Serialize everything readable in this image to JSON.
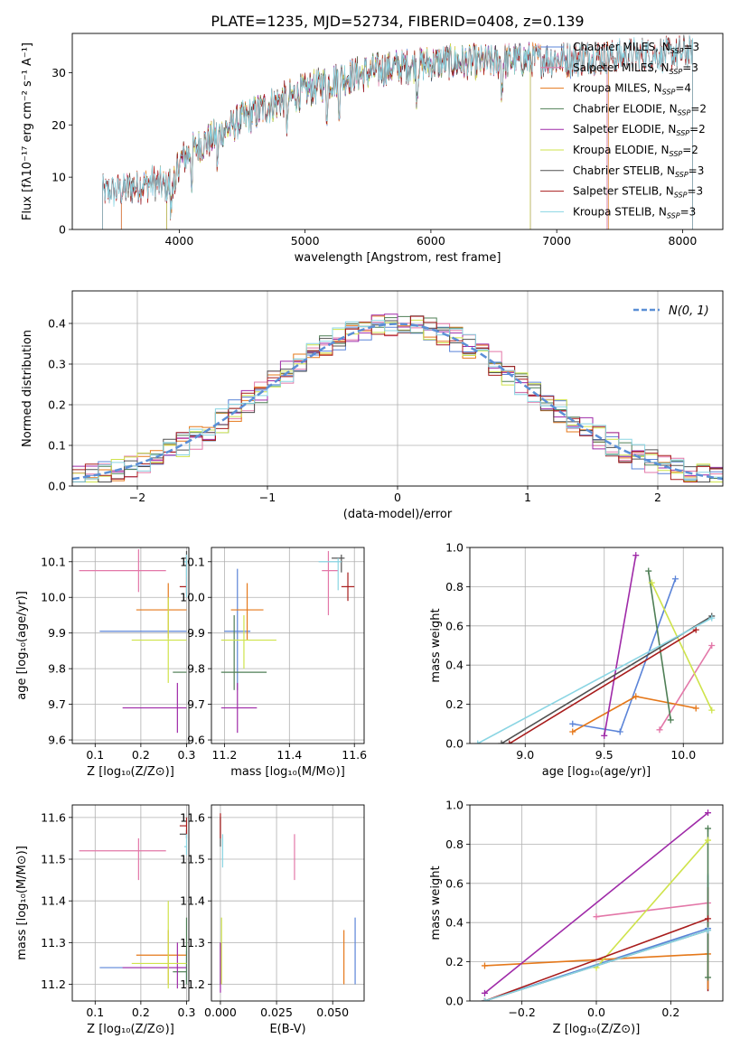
{
  "figure": {
    "title": "PLATE=1235, MJD=52734, FIBERID=0408, z=0.139"
  },
  "colors": {
    "chabrier_miles": "#5b84d8",
    "salpeter_miles": "#e377a8",
    "kroupa_miles": "#e5781a",
    "chabrier_elodie": "#4f7f56",
    "salpeter_elodie": "#9f2aa8",
    "kroupa_elodie": "#cfe34b",
    "chabrier_stelib": "#505050",
    "salpeter_stelib": "#a81c1c",
    "kroupa_stelib": "#8ad5e3",
    "gaussian": "#5b8fd6",
    "grid": "#b0b0b0"
  },
  "chart_data": [
    {
      "id": "spectrum",
      "type": "line",
      "title": "PLATE=1235, MJD=52734, FIBERID=0408, z=0.139",
      "xlabel": "wavelength [Angstrom, rest frame]",
      "ylabel": "Flux [fλ10⁻¹⁷ erg cm⁻² s⁻¹ A⁻¹]",
      "xlim": [
        3150,
        8320
      ],
      "ylim": [
        0,
        37.5
      ],
      "xticks": [
        4000,
        5000,
        6000,
        7000,
        8000
      ],
      "yticks": [
        0,
        10,
        20,
        30
      ],
      "grid": false,
      "legend_position": "top-right",
      "continuum_nodes": {
        "x": [
          3390,
          3500,
          3600,
          3700,
          3800,
          3900,
          3950,
          4000,
          4100,
          4200,
          4300,
          4400,
          4500,
          4700,
          4900,
          5100,
          5300,
          5500,
          5700,
          5900,
          6100,
          6300,
          6500,
          6700,
          6900,
          7100,
          7300,
          7500,
          7700,
          7900,
          8050
        ],
        "y": [
          7,
          7.5,
          8,
          8.5,
          9,
          8,
          9.5,
          13,
          15,
          16.5,
          18,
          19.5,
          21,
          23.5,
          25.5,
          27.5,
          29,
          30,
          31,
          31.5,
          32,
          32,
          32,
          32.5,
          32.5,
          32.5,
          33,
          33,
          33.5,
          33.5,
          34
        ]
      },
      "series": [
        {
          "name": "Chabrier MILES, Nₛₛₚ=3",
          "label": "Chabrier MILES, N",
          "ssp": "=3",
          "color_key": "chabrier_miles",
          "xrange": [
            3540,
            7400
          ]
        },
        {
          "name": "Salpeter MILES, Nₛₛₚ=3",
          "label": "Salpeter MILES, N",
          "ssp": "=3",
          "color_key": "salpeter_miles",
          "xrange": [
            3540,
            7400
          ]
        },
        {
          "name": "Kroupa MILES, Nₛₛₚ=4",
          "label": "Kroupa MILES, N",
          "ssp": "=4",
          "color_key": "kroupa_miles",
          "xrange": [
            3540,
            7410
          ]
        },
        {
          "name": "Chabrier ELODIE, Nₛₛₚ=2",
          "label": "Chabrier ELODIE, N",
          "ssp": "=2",
          "color_key": "chabrier_elodie",
          "xrange": [
            3900,
            6790
          ]
        },
        {
          "name": "Salpeter ELODIE, Nₛₛₚ=2",
          "label": "Salpeter ELODIE, N",
          "ssp": "=2",
          "color_key": "salpeter_elodie",
          "xrange": [
            3900,
            6790
          ]
        },
        {
          "name": "Kroupa ELODIE, Nₛₛₚ=2",
          "label": "Kroupa ELODIE, N",
          "ssp": "=2",
          "color_key": "kroupa_elodie",
          "xrange": [
            3900,
            6790
          ]
        },
        {
          "name": "Chabrier STELIB, Nₛₛₚ=3",
          "label": "Chabrier STELIB, N",
          "ssp": "=3",
          "color_key": "chabrier_stelib",
          "xrange": [
            3390,
            8080
          ]
        },
        {
          "name": "Salpeter STELIB, Nₛₛₚ=3",
          "label": "Salpeter STELIB, N",
          "ssp": "=3",
          "color_key": "salpeter_stelib",
          "xrange": [
            3390,
            8080
          ]
        },
        {
          "name": "Kroupa STELIB, Nₛₛₚ=3",
          "label": "Kroupa STELIB, N",
          "ssp": "=3",
          "color_key": "kroupa_stelib",
          "xrange": [
            3390,
            8080
          ]
        }
      ]
    },
    {
      "id": "residuals",
      "type": "line",
      "xlabel": "(data-model)/error",
      "ylabel": "Normed distribution",
      "xlim": [
        -2.5,
        2.5
      ],
      "ylim": [
        0,
        0.48
      ],
      "xticks": [
        -2,
        -1,
        0,
        1,
        2
      ],
      "xtick_labels": [
        "−2",
        "−1",
        "0",
        "1",
        "2"
      ],
      "yticks": [
        0.0,
        0.1,
        0.2,
        0.3,
        0.4
      ],
      "ytick_labels": [
        "0.0",
        "0.1",
        "0.2",
        "0.3",
        "0.4"
      ],
      "grid": true,
      "legend_position": "top-right",
      "legend": "N(0, 1)",
      "bin_width": 0.1,
      "series": "step histograms of the 9 models",
      "gaussian": {
        "mean": 0,
        "sigma": 1
      }
    },
    {
      "id": "age_vs_Z",
      "type": "scatter",
      "xlabel": "Z [log₁₀(Z/Z⊙)]",
      "ylabel": "age  [log₁₀(age/yr)]",
      "xlim": [
        0.05,
        0.305
      ],
      "ylim": [
        9.59,
        10.14
      ],
      "xticks": [
        0.1,
        0.2,
        0.3
      ],
      "yticks": [
        9.6,
        9.7,
        9.8,
        9.9,
        10.0,
        10.1
      ],
      "ytick_labels": [
        "9.6",
        "9.7",
        "9.8",
        "9.9",
        "10.0",
        "10.1"
      ],
      "grid": true,
      "points": [
        {
          "model": "chabrier_miles",
          "x": 0.3,
          "y": 9.905,
          "xlo": 0.11,
          "xhi": 0.3,
          "ylo": 9.905,
          "yhi": 9.905
        },
        {
          "model": "salpeter_miles",
          "x": 0.195,
          "y": 10.075,
          "xlo": 0.065,
          "xhi": 0.255,
          "ylo": 10.015,
          "yhi": 10.135
        },
        {
          "model": "kroupa_miles",
          "x": 0.26,
          "y": 9.965,
          "xlo": 0.19,
          "xhi": 0.3,
          "ylo": 9.885,
          "yhi": 10.04
        },
        {
          "model": "chabrier_elodie",
          "x": 0.3,
          "y": 9.79,
          "xlo": 0.27,
          "xhi": 0.3,
          "ylo": 9.79,
          "yhi": 9.79
        },
        {
          "model": "salpeter_elodie",
          "x": 0.28,
          "y": 9.69,
          "xlo": 0.16,
          "xhi": 0.3,
          "ylo": 9.62,
          "yhi": 9.76
        },
        {
          "model": "kroupa_elodie",
          "x": 0.26,
          "y": 9.88,
          "xlo": 0.18,
          "xhi": 0.3,
          "ylo": 9.76,
          "yhi": 10.0
        },
        {
          "model": "chabrier_stelib",
          "x": 0.3,
          "y": 10.11,
          "xlo": 0.29,
          "xhi": 0.3,
          "ylo": 10.06,
          "yhi": 10.13
        },
        {
          "model": "salpeter_stelib",
          "x": 0.3,
          "y": 10.03,
          "xlo": 0.285,
          "xhi": 0.3,
          "ylo": 10.01,
          "yhi": 10.06
        },
        {
          "model": "kroupa_stelib",
          "x": 0.3,
          "y": 10.1,
          "xlo": 0.295,
          "xhi": 0.3,
          "ylo": 10.0,
          "yhi": 10.12
        }
      ]
    },
    {
      "id": "age_vs_mass",
      "type": "scatter",
      "xlabel": "mass [log₁₀(M/M⊙)]",
      "ylabel": "",
      "xlim": [
        11.16,
        11.63
      ],
      "ylim": [
        9.59,
        10.14
      ],
      "xticks": [
        11.2,
        11.4,
        11.6
      ],
      "yticks": [
        9.6,
        9.7,
        9.8,
        9.9,
        10.0,
        10.1
      ],
      "ytick_labels": [
        "9.6",
        "9.7",
        "9.8",
        "9.9",
        "10.0",
        "10.1"
      ],
      "grid": true,
      "points": [
        {
          "model": "chabrier_miles",
          "x": 11.24,
          "y": 9.905,
          "xlo": 11.2,
          "xhi": 11.28,
          "ylo": 9.74,
          "yhi": 10.08
        },
        {
          "model": "salpeter_miles",
          "x": 11.52,
          "y": 10.075,
          "xlo": 11.5,
          "xhi": 11.55,
          "ylo": 9.95,
          "yhi": 10.13
        },
        {
          "model": "kroupa_miles",
          "x": 11.27,
          "y": 9.965,
          "xlo": 11.22,
          "xhi": 11.32,
          "ylo": 9.88,
          "yhi": 10.04
        },
        {
          "model": "chabrier_elodie",
          "x": 11.23,
          "y": 9.79,
          "xlo": 11.19,
          "xhi": 11.33,
          "ylo": 9.74,
          "yhi": 9.95
        },
        {
          "model": "salpeter_elodie",
          "x": 11.24,
          "y": 9.69,
          "xlo": 11.19,
          "xhi": 11.3,
          "ylo": 9.62,
          "yhi": 9.76
        },
        {
          "model": "kroupa_elodie",
          "x": 11.26,
          "y": 9.88,
          "xlo": 11.19,
          "xhi": 11.36,
          "ylo": 9.8,
          "yhi": 9.95
        },
        {
          "model": "chabrier_stelib",
          "x": 11.56,
          "y": 10.11,
          "xlo": 11.53,
          "xhi": 11.57,
          "ylo": 10.07,
          "yhi": 10.12
        },
        {
          "model": "salpeter_stelib",
          "x": 11.58,
          "y": 10.03,
          "xlo": 11.56,
          "xhi": 11.6,
          "ylo": 9.99,
          "yhi": 10.07
        },
        {
          "model": "kroupa_stelib",
          "x": 11.55,
          "y": 10.1,
          "xlo": 11.49,
          "xhi": 11.56,
          "ylo": 10.02,
          "yhi": 10.11
        }
      ]
    },
    {
      "id": "massweight_vs_age",
      "type": "line",
      "xlabel": "age  [log₁₀(age/yr)]",
      "ylabel": "mass weight",
      "xlim": [
        8.65,
        10.25
      ],
      "ylim": [
        0,
        1.0
      ],
      "xticks": [
        9.0,
        9.5,
        10.0
      ],
      "xtick_labels": [
        "9.0",
        "9.5",
        "10.0"
      ],
      "yticks": [
        0.0,
        0.2,
        0.4,
        0.6,
        0.8,
        1.0
      ],
      "ytick_labels": [
        "0.0",
        "0.2",
        "0.4",
        "0.6",
        "0.8",
        "1.0"
      ],
      "grid": true,
      "series": [
        {
          "model": "chabrier_miles",
          "x": [
            9.3,
            9.6,
            9.95
          ],
          "y": [
            0.1,
            0.06,
            0.84
          ]
        },
        {
          "model": "salpeter_miles",
          "x": [
            9.85,
            10.18
          ],
          "y": [
            0.07,
            0.5
          ]
        },
        {
          "model": "kroupa_miles",
          "x": [
            9.3,
            9.7,
            10.08
          ],
          "y": [
            0.06,
            0.24,
            0.18
          ]
        },
        {
          "model": "chabrier_elodie",
          "x": [
            9.78,
            9.92
          ],
          "y": [
            0.88,
            0.12
          ]
        },
        {
          "model": "salpeter_elodie",
          "x": [
            9.5,
            9.7
          ],
          "y": [
            0.04,
            0.96
          ]
        },
        {
          "model": "kroupa_elodie",
          "x": [
            9.8,
            10.18
          ],
          "y": [
            0.82,
            0.17
          ]
        },
        {
          "model": "chabrier_stelib",
          "x": [
            8.85,
            10.18
          ],
          "y": [
            0.0,
            0.65
          ]
        },
        {
          "model": "salpeter_stelib",
          "x": [
            8.9,
            10.08
          ],
          "y": [
            0.0,
            0.58
          ]
        },
        {
          "model": "kroupa_stelib",
          "x": [
            8.7,
            10.18
          ],
          "y": [
            0.0,
            0.64
          ]
        }
      ]
    },
    {
      "id": "mass_vs_Z",
      "type": "scatter",
      "xlabel": "Z [log₁₀(Z/Z⊙)]",
      "ylabel": "mass [log₁₀(M/M⊙)]",
      "xlim": [
        0.05,
        0.305
      ],
      "ylim": [
        11.16,
        11.63
      ],
      "xticks": [
        0.1,
        0.2,
        0.3
      ],
      "yticks": [
        11.2,
        11.3,
        11.4,
        11.5,
        11.6
      ],
      "ytick_labels": [
        "11.2",
        "11.3",
        "11.4",
        "11.5",
        "11.6"
      ],
      "grid": true,
      "points": [
        {
          "model": "chabrier_miles",
          "x": 0.3,
          "y": 11.24,
          "xlo": 0.11,
          "xhi": 0.3,
          "ylo": 11.2,
          "yhi": 11.28
        },
        {
          "model": "salpeter_miles",
          "x": 0.195,
          "y": 11.52,
          "xlo": 0.065,
          "xhi": 0.255,
          "ylo": 11.45,
          "yhi": 11.55
        },
        {
          "model": "kroupa_miles",
          "x": 0.26,
          "y": 11.27,
          "xlo": 0.19,
          "xhi": 0.3,
          "ylo": 11.2,
          "yhi": 11.33
        },
        {
          "model": "chabrier_elodie",
          "x": 0.3,
          "y": 11.23,
          "xlo": 0.27,
          "xhi": 0.3,
          "ylo": 11.2,
          "yhi": 11.36
        },
        {
          "model": "salpeter_elodie",
          "x": 0.28,
          "y": 11.24,
          "xlo": 0.16,
          "xhi": 0.3,
          "ylo": 11.19,
          "yhi": 11.3
        },
        {
          "model": "kroupa_elodie",
          "x": 0.26,
          "y": 11.25,
          "xlo": 0.18,
          "xhi": 0.3,
          "ylo": 11.19,
          "yhi": 11.4
        },
        {
          "model": "chabrier_stelib",
          "x": 0.3,
          "y": 11.56,
          "xlo": 0.285,
          "xhi": 0.3,
          "ylo": 11.55,
          "yhi": 11.57
        },
        {
          "model": "salpeter_stelib",
          "x": 0.3,
          "y": 11.58,
          "xlo": 0.285,
          "xhi": 0.3,
          "ylo": 11.56,
          "yhi": 11.6
        },
        {
          "model": "kroupa_stelib",
          "x": 0.3,
          "y": 11.53,
          "xlo": 0.295,
          "xhi": 0.3,
          "ylo": 11.51,
          "yhi": 11.56
        }
      ]
    },
    {
      "id": "mass_vs_ebv",
      "type": "scatter",
      "xlabel": "E(B-V)",
      "ylabel": "",
      "xlim": [
        -0.004,
        0.064
      ],
      "ylim": [
        11.16,
        11.63
      ],
      "xticks": [
        0.0,
        0.025,
        0.05
      ],
      "xtick_labels": [
        "0.000",
        "0.025",
        "0.050"
      ],
      "yticks": [
        11.2,
        11.3,
        11.4,
        11.5,
        11.6
      ],
      "ytick_labels": [
        "11.2",
        "11.3",
        "11.4",
        "11.5",
        "11.6"
      ],
      "grid": true,
      "points": [
        {
          "model": "chabrier_miles",
          "x": 0.06,
          "y": 11.24,
          "xlo": 0.06,
          "xhi": 0.06,
          "ylo": 11.2,
          "yhi": 11.36
        },
        {
          "model": "salpeter_miles",
          "x": 0.033,
          "y": 11.5,
          "xlo": 0.033,
          "xhi": 0.033,
          "ylo": 11.45,
          "yhi": 11.56
        },
        {
          "model": "kroupa_miles",
          "x": 0.055,
          "y": 11.27,
          "xlo": 0.055,
          "xhi": 0.055,
          "ylo": 11.2,
          "yhi": 11.33
        },
        {
          "model": "chabrier_elodie",
          "x": 0.0,
          "y": 11.23,
          "xlo": 0.0,
          "xhi": 0.0,
          "ylo": 11.2,
          "yhi": 11.3
        },
        {
          "model": "salpeter_elodie",
          "x": 0.0,
          "y": 11.24,
          "xlo": 0.0,
          "xhi": 0.0,
          "ylo": 11.18,
          "yhi": 11.3
        },
        {
          "model": "kroupa_elodie",
          "x": 0.0005,
          "y": 11.26,
          "xlo": 0.0005,
          "xhi": 0.0005,
          "ylo": 11.2,
          "yhi": 11.36
        },
        {
          "model": "chabrier_stelib",
          "x": 0.0,
          "y": 11.56,
          "xlo": 0.0,
          "xhi": 0.0,
          "ylo": 11.53,
          "yhi": 11.6
        },
        {
          "model": "salpeter_stelib",
          "x": 0.0,
          "y": 11.58,
          "xlo": 0.0,
          "xhi": 0.0,
          "ylo": 11.55,
          "yhi": 11.61
        },
        {
          "model": "kroupa_stelib",
          "x": 0.001,
          "y": 11.52,
          "xlo": 0.001,
          "xhi": 0.001,
          "ylo": 11.48,
          "yhi": 11.56
        }
      ]
    },
    {
      "id": "massweight_vs_Z",
      "type": "line",
      "xlabel": "Z [log₁₀(Z/Z⊙)]",
      "ylabel": "mass weight",
      "xlim": [
        -0.34,
        0.34
      ],
      "ylim": [
        0,
        1.0
      ],
      "xticks": [
        -0.2,
        0.0,
        0.2
      ],
      "xtick_labels": [
        "−0.2",
        "0.0",
        "0.2"
      ],
      "yticks": [
        0.0,
        0.2,
        0.4,
        0.6,
        0.8,
        1.0
      ],
      "ytick_labels": [
        "0.0",
        "0.2",
        "0.4",
        "0.6",
        "0.8",
        "1.0"
      ],
      "grid": true,
      "series": [
        {
          "model": "chabrier_miles",
          "x": [
            -0.3,
            0.3
          ],
          "y": [
            0.0,
            0.37
          ]
        },
        {
          "model": "salpeter_miles",
          "x": [
            0.0,
            0.3
          ],
          "y": [
            0.43,
            0.5
          ]
        },
        {
          "model": "kroupa_miles",
          "x": [
            -0.3,
            0.3
          ],
          "y": [
            0.18,
            0.24
          ]
        },
        {
          "model": "chabrier_elodie",
          "x": [
            0.3,
            0.3
          ],
          "y": [
            0.12,
            0.88
          ]
        },
        {
          "model": "salpeter_elodie",
          "x": [
            -0.3,
            0.3
          ],
          "y": [
            0.04,
            0.96
          ]
        },
        {
          "model": "kroupa_elodie",
          "x": [
            0.0,
            0.3
          ],
          "y": [
            0.17,
            0.82
          ]
        },
        {
          "model": "chabrier_stelib",
          "x": [
            -0.3,
            0.3
          ],
          "y": [
            0.0,
            0.36
          ]
        },
        {
          "model": "salpeter_stelib",
          "x": [
            -0.3,
            0.3
          ],
          "y": [
            0.0,
            0.42
          ]
        },
        {
          "model": "kroupa_stelib",
          "x": [
            -0.3,
            0.3
          ],
          "y": [
            0.0,
            0.36
          ]
        }
      ],
      "verticals": [
        {
          "model": "chabrier_miles",
          "x": 0.3,
          "y": [
            0.06,
            0.64
          ]
        },
        {
          "model": "kroupa_stelib",
          "x": 0.3,
          "y": [
            0.05,
            0.65
          ]
        },
        {
          "model": "salpeter_stelib",
          "x": 0.3,
          "y": [
            0.05,
            0.58
          ]
        },
        {
          "model": "kroupa_miles",
          "x": 0.3,
          "y": [
            0.06,
            0.24
          ]
        }
      ]
    }
  ]
}
